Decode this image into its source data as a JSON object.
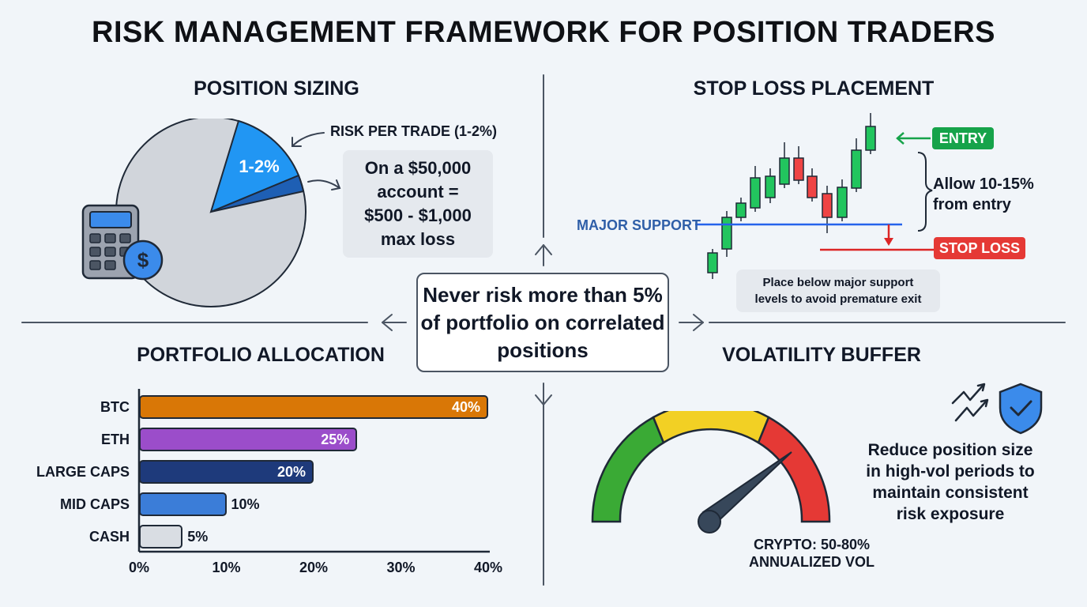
{
  "title": "RISK MANAGEMENT FRAMEWORK FOR POSITION TRADERS",
  "center_message": "Never risk more than 5% of portfolio on correlated positions",
  "position_sizing": {
    "title": "POSITION SIZING",
    "slice_label": "1-2%",
    "callout": "RISK PER TRADE (1-2%)",
    "example_lines": [
      "On a $50,000",
      "account =",
      "$500 - $1,000",
      "max loss"
    ],
    "icons": [
      "calculator-icon",
      "dollar-coin-icon"
    ],
    "colors": {
      "pie": "#d1d5db",
      "slice": "#2196f3",
      "slice_dark": "#1e5fb4"
    }
  },
  "stop_loss": {
    "title": "STOP LOSS PLACEMENT",
    "entry_label": "ENTRY",
    "support_label": "MAJOR SUPPORT",
    "stop_label": "STOP LOSS",
    "allow_lines": [
      "Allow 10-15%",
      "from entry"
    ],
    "note_lines": [
      "Place below major support",
      "levels to avoid premature exit"
    ],
    "colors": {
      "bull": "#22c55e",
      "bear": "#ef4444",
      "support": "#2563eb",
      "entry": "#16a34a",
      "stop": "#dc2626"
    }
  },
  "portfolio": {
    "title": "PORTFOLIO ALLOCATION",
    "ticks": [
      "0%",
      "10%",
      "20%",
      "30%",
      "40%"
    ],
    "xlim": [
      0,
      40
    ]
  },
  "chart_data": {
    "type": "bar",
    "orientation": "horizontal",
    "categories": [
      "BTC",
      "ETH",
      "LARGE CAPS",
      "MID CAPS",
      "CASH"
    ],
    "values": [
      40,
      25,
      20,
      10,
      5
    ],
    "labels": [
      "40%",
      "25%",
      "20%",
      "10%",
      "5%"
    ],
    "colors": [
      "#d97706",
      "#9b4dca",
      "#1e3a7b",
      "#3b7dd8",
      "#d9dde3"
    ],
    "xlim": [
      0,
      40
    ],
    "title": "PORTFOLIO ALLOCATION"
  },
  "volatility": {
    "title": "VOLATILITY BUFFER",
    "gauge_lines": [
      "CRYPTO: 50-80%",
      "ANNUALIZED VOL"
    ],
    "advice_lines": [
      "Reduce position size",
      "in high-vol periods to",
      "maintain consistent",
      "risk exposure"
    ],
    "icons": [
      "trend-zigzag-icon",
      "shield-check-icon"
    ],
    "colors": {
      "low": "#3aaa35",
      "mid": "#f2d024",
      "high": "#e53935"
    }
  }
}
